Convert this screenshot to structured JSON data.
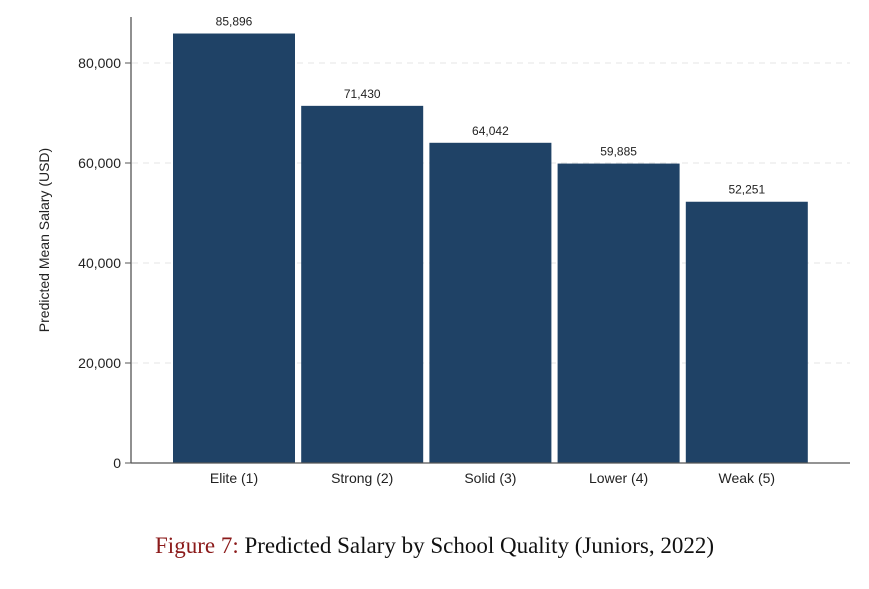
{
  "chart_data": {
    "type": "bar",
    "title": "",
    "xlabel": "",
    "ylabel": "Predicted Mean Salary (USD)",
    "categories": [
      "Elite (1)",
      "Strong (2)",
      "Solid (3)",
      "Lower (4)",
      "Weak (5)"
    ],
    "values": [
      85896,
      71430,
      64042,
      59885,
      52251
    ],
    "data_labels": [
      "85,896",
      "71,430",
      "64,042",
      "59,885",
      "52,251"
    ],
    "yticks": [
      0,
      20000,
      40000,
      60000,
      80000
    ],
    "ytick_labels": [
      "0",
      "20,000",
      "40,000",
      "60,000",
      "80,000"
    ],
    "ylim": [
      0,
      90000
    ],
    "grid": true,
    "bar_color": "#1f4266"
  },
  "caption": {
    "label": "Figure 7:",
    "text": " Predicted Salary by School Quality (Juniors, 2022)"
  }
}
